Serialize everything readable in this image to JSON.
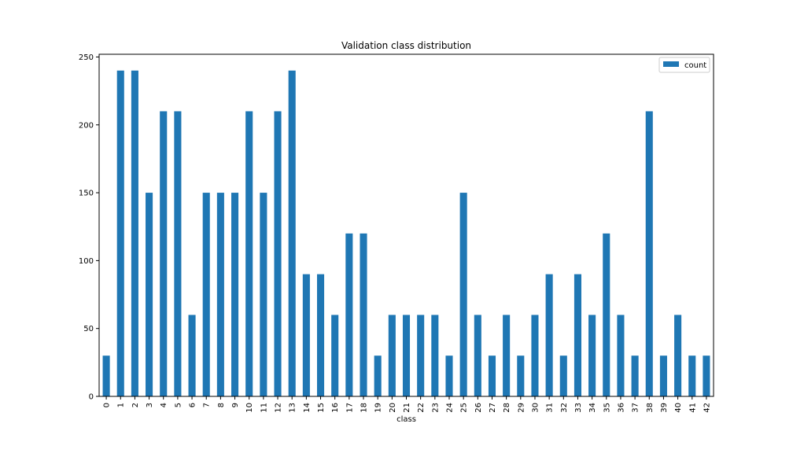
{
  "chart_data": {
    "type": "bar",
    "title": "Validation class distribution",
    "xlabel": "class",
    "ylabel": "",
    "categories": [
      "0",
      "1",
      "2",
      "3",
      "4",
      "5",
      "6",
      "7",
      "8",
      "9",
      "10",
      "11",
      "12",
      "13",
      "14",
      "15",
      "16",
      "17",
      "18",
      "19",
      "20",
      "21",
      "22",
      "23",
      "24",
      "25",
      "26",
      "27",
      "28",
      "29",
      "30",
      "31",
      "32",
      "33",
      "34",
      "35",
      "36",
      "37",
      "38",
      "39",
      "40",
      "41",
      "42"
    ],
    "series": [
      {
        "name": "count",
        "color": "#1f77b4",
        "values": [
          30,
          240,
          240,
          150,
          210,
          210,
          60,
          150,
          150,
          150,
          210,
          150,
          210,
          240,
          90,
          90,
          60,
          120,
          120,
          30,
          60,
          60,
          60,
          60,
          30,
          150,
          60,
          30,
          60,
          30,
          60,
          90,
          30,
          90,
          60,
          120,
          60,
          30,
          210,
          30,
          60,
          30,
          30
        ]
      }
    ],
    "ylim": [
      0,
      252
    ],
    "yticks": [
      0,
      50,
      100,
      150,
      200,
      250
    ],
    "grid": false,
    "legend_position": "top-right"
  }
}
